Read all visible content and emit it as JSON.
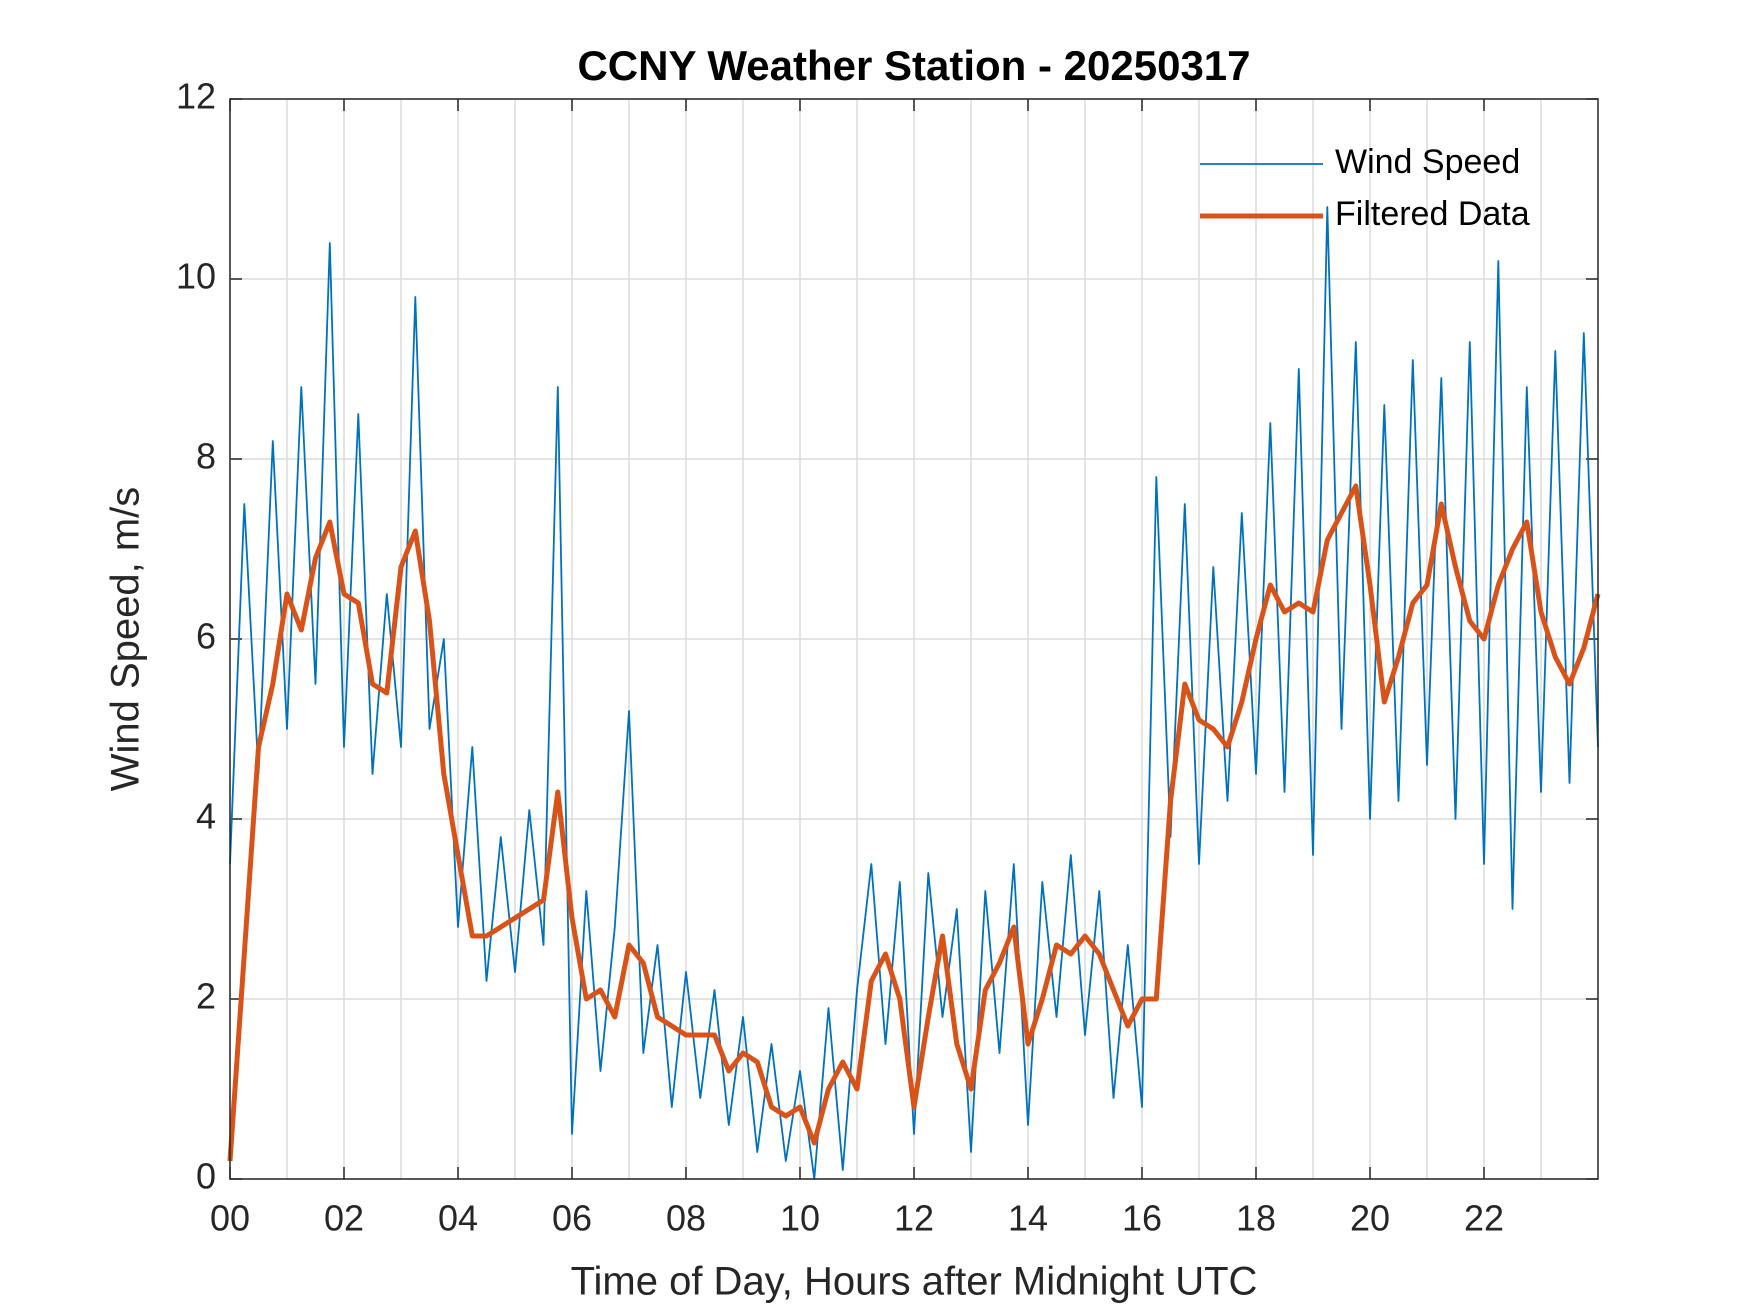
{
  "chart_data": {
    "type": "line",
    "title": "CCNY Weather Station - 20250317",
    "xlabel": "Time of Day, Hours after Midnight UTC",
    "ylabel": "Wind Speed, m/s",
    "x": [
      0,
      0.25,
      0.5,
      0.75,
      1,
      1.25,
      1.5,
      1.75,
      2,
      2.25,
      2.5,
      2.75,
      3,
      3.25,
      3.5,
      3.75,
      4,
      4.25,
      4.5,
      4.75,
      5,
      5.25,
      5.5,
      5.75,
      6,
      6.25,
      6.5,
      6.75,
      7,
      7.25,
      7.5,
      7.75,
      8,
      8.25,
      8.5,
      8.75,
      9,
      9.25,
      9.5,
      9.75,
      10,
      10.25,
      10.5,
      10.75,
      11,
      11.25,
      11.5,
      11.75,
      12,
      12.25,
      12.5,
      12.75,
      13,
      13.25,
      13.5,
      13.75,
      14,
      14.25,
      14.5,
      14.75,
      15,
      15.25,
      15.5,
      15.75,
      16,
      16.25,
      16.5,
      16.75,
      17,
      17.25,
      17.5,
      17.75,
      18,
      18.25,
      18.5,
      18.75,
      19,
      19.25,
      19.5,
      19.75,
      20,
      20.25,
      20.5,
      20.75,
      21,
      21.25,
      21.5,
      21.75,
      22,
      22.25,
      22.5,
      22.75,
      23,
      23.25,
      23.5,
      23.75,
      24
    ],
    "series": [
      {
        "name": "Wind Speed",
        "color": "#0072BD",
        "values": [
          3.5,
          7.5,
          4.5,
          8.2,
          5.0,
          8.8,
          5.5,
          10.4,
          4.8,
          8.5,
          4.5,
          6.5,
          4.8,
          9.8,
          5.0,
          6.0,
          2.8,
          4.8,
          2.2,
          3.8,
          2.3,
          4.1,
          2.6,
          8.8,
          0.5,
          3.2,
          1.2,
          2.8,
          5.2,
          1.4,
          2.6,
          0.8,
          2.3,
          0.9,
          2.1,
          0.6,
          1.8,
          0.3,
          1.5,
          0.2,
          1.2,
          0.0,
          1.9,
          0.1,
          2.1,
          3.5,
          1.5,
          3.3,
          0.5,
          3.4,
          1.8,
          3.0,
          0.3,
          3.2,
          1.4,
          3.5,
          0.6,
          3.3,
          1.8,
          3.6,
          1.6,
          3.2,
          0.9,
          2.6,
          0.8,
          7.8,
          3.8,
          7.5,
          3.5,
          6.8,
          4.2,
          7.4,
          4.5,
          8.4,
          4.3,
          9.0,
          3.6,
          10.8,
          5.0,
          9.3,
          4.0,
          8.6,
          4.2,
          9.1,
          4.6,
          8.9,
          4.0,
          9.3,
          3.5,
          10.2,
          3.0,
          8.8,
          4.3,
          9.2,
          4.4,
          9.4,
          4.8
        ]
      },
      {
        "name": "Filtered Data",
        "color": "#D95319",
        "values": [
          0.2,
          2.5,
          4.8,
          5.5,
          6.5,
          6.1,
          6.9,
          7.3,
          6.5,
          6.4,
          5.5,
          5.4,
          6.8,
          7.2,
          6.2,
          4.5,
          3.6,
          2.7,
          2.7,
          2.8,
          2.9,
          3.0,
          3.1,
          4.3,
          2.9,
          2.0,
          2.1,
          1.8,
          2.6,
          2.4,
          1.8,
          1.7,
          1.6,
          1.6,
          1.6,
          1.2,
          1.4,
          1.3,
          0.8,
          0.7,
          0.8,
          0.4,
          1.0,
          1.3,
          1.0,
          2.2,
          2.5,
          2.0,
          0.8,
          1.8,
          2.7,
          1.5,
          1.0,
          2.1,
          2.4,
          2.8,
          1.5,
          2.0,
          2.6,
          2.5,
          2.7,
          2.5,
          2.1,
          1.7,
          2.0,
          2.0,
          4.2,
          5.5,
          5.1,
          5.0,
          4.8,
          5.3,
          6.0,
          6.6,
          6.3,
          6.4,
          6.3,
          7.1,
          7.4,
          7.7,
          6.6,
          5.3,
          5.8,
          6.4,
          6.6,
          7.5,
          6.8,
          6.2,
          6.0,
          6.6,
          7.0,
          7.3,
          6.3,
          5.8,
          5.5,
          5.9,
          6.5
        ]
      }
    ],
    "xlim": [
      0,
      24
    ],
    "xticks": [
      {
        "value": 0,
        "label": "00"
      },
      {
        "value": 2,
        "label": "02"
      },
      {
        "value": 4,
        "label": "04"
      },
      {
        "value": 6,
        "label": "06"
      },
      {
        "value": 8,
        "label": "08"
      },
      10,
      12,
      14,
      16,
      18,
      20,
      22
    ],
    "xminorticks": [
      1,
      3,
      5,
      7,
      9,
      11,
      13,
      15,
      17,
      19,
      21,
      23
    ],
    "ylim": [
      0,
      12
    ],
    "yticks": [
      0,
      2,
      4,
      6,
      8,
      10,
      12
    ],
    "grid": true,
    "legend": "upper right"
  }
}
